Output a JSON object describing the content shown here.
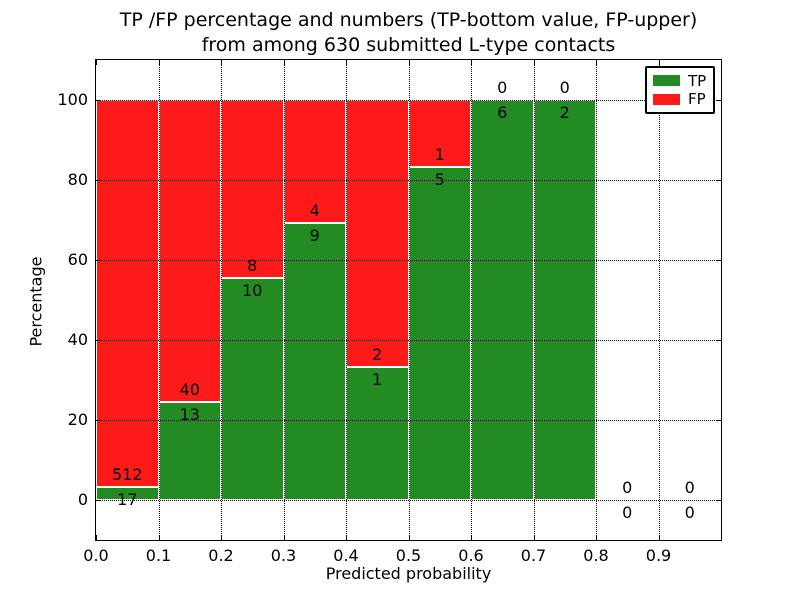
{
  "figure": {
    "title_line1": "TP /FP percentage and numbers (TP-bottom value, FP-upper)",
    "title_line2": "from among 630 submitted L-type contacts",
    "background": "#ffffff"
  },
  "axes": {
    "xlabel": "Predicted probability",
    "ylabel": "Percentage",
    "x_tick_labels": [
      "0.0",
      "0.1",
      "0.2",
      "0.3",
      "0.4",
      "0.5",
      "0.6",
      "0.7",
      "0.8",
      "0.9"
    ],
    "y_tick_labels": [
      "0",
      "20",
      "40",
      "60",
      "80",
      "100"
    ],
    "y_tick_values": [
      0,
      20,
      40,
      60,
      80,
      100
    ],
    "xlim": [
      0.0,
      1.0
    ],
    "ylim_view": [
      -10,
      110
    ],
    "grid_style": "dotted black"
  },
  "legend": {
    "position": "upper-right",
    "items": [
      {
        "label": "TP",
        "color": "#228b22"
      },
      {
        "label": "FP",
        "color": "#ff1a1a"
      }
    ]
  },
  "chart_data": {
    "type": "bar",
    "stacked": true,
    "normalized": "each bin scaled to 100%, count labels flank the TP/FP boundary",
    "title": "TP /FP percentage and numbers (TP-bottom value, FP-upper) from among 630 submitted L-type contacts",
    "xlabel": "Predicted probability",
    "ylabel": "Percentage",
    "total_contacts": 630,
    "bins": [
      "0.0-0.1",
      "0.1-0.2",
      "0.2-0.3",
      "0.3-0.4",
      "0.4-0.5",
      "0.5-0.6",
      "0.6-0.7",
      "0.7-0.8",
      "0.8-0.9",
      "0.9-1.0"
    ],
    "series": [
      {
        "name": "TP",
        "color": "#228b22",
        "values": [
          17,
          13,
          10,
          9,
          1,
          5,
          6,
          2,
          0,
          0
        ]
      },
      {
        "name": "FP",
        "color": "#ff1a1a",
        "values": [
          512,
          40,
          8,
          4,
          2,
          1,
          0,
          0,
          0,
          0
        ]
      }
    ],
    "tp_percent": [
      3.2,
      24.5,
      55.6,
      69.2,
      33.3,
      83.3,
      100.0,
      100.0,
      null,
      null
    ],
    "ylim": [
      0,
      100
    ],
    "xlim": [
      0,
      1
    ],
    "gridlines": {
      "x_step": 0.1,
      "y_step": 20,
      "style": "dotted"
    },
    "legend_entries": [
      "TP",
      "FP"
    ]
  }
}
